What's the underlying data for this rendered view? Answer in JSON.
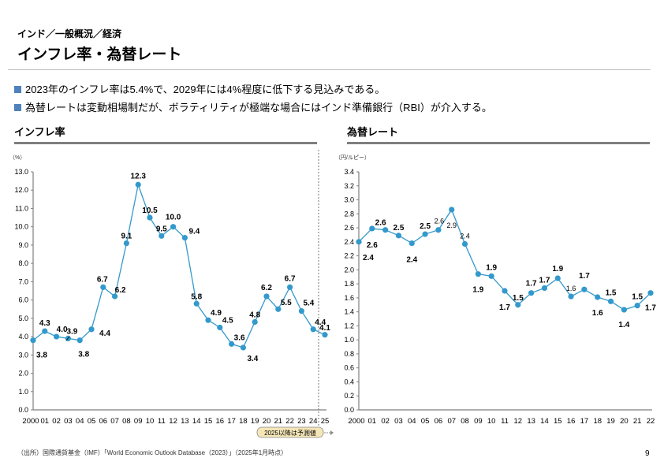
{
  "header": {
    "breadcrumb": "インド／一般概況／経済",
    "title": "インフレ率・為替レート"
  },
  "bullets": [
    "2023年のインフレ率は5.4%で、2029年には4%程度に低下する見込みである。",
    "為替レートは変動相場制だが、ボラティリティが極端な場合にはインド準備銀行（RBI）が介入する。"
  ],
  "colors": {
    "series": "#3399cc",
    "bullet": "#4f81bd"
  },
  "chart_data": [
    {
      "type": "line",
      "title": "インフレ率",
      "ylabel": "（%）",
      "ylim": [
        0,
        13
      ],
      "yticks": [
        "0.0",
        "1.0",
        "2.0",
        "3.0",
        "4.0",
        "5.0",
        "6.0",
        "7.0",
        "8.0",
        "9.0",
        "10.0",
        "11.0",
        "12.0",
        "13.0"
      ],
      "categories": [
        "2000",
        "01",
        "02",
        "03",
        "04",
        "05",
        "06",
        "07",
        "08",
        "09",
        "10",
        "11",
        "12",
        "13",
        "14",
        "15",
        "16",
        "17",
        "18",
        "19",
        "20",
        "21",
        "22",
        "23",
        "24",
        "25"
      ],
      "values": [
        3.8,
        4.3,
        4.0,
        3.9,
        3.8,
        4.4,
        6.7,
        6.2,
        9.1,
        12.3,
        10.5,
        9.5,
        10.0,
        9.4,
        5.8,
        4.9,
        4.5,
        3.6,
        3.4,
        4.8,
        6.2,
        5.5,
        6.7,
        5.4,
        4.4,
        4.1
      ],
      "labels": [
        "3.8",
        "4.3",
        "4.0",
        "3.9",
        "3.8",
        "4.4",
        "6.7",
        "6.2",
        "9.1",
        "12.3",
        "10.5",
        "9.5",
        "10.0",
        "9.4",
        "5.8",
        "4.9",
        "4.5",
        "3.6",
        "3.4",
        "4.8",
        "6.2",
        "5.5",
        "6.7",
        "5.4",
        "4.4",
        "4.1"
      ],
      "annotation": "2025以降は予測値",
      "forecast_from": "25"
    },
    {
      "type": "line",
      "title": "為替レート",
      "ylabel": "（円/ルピー）",
      "ylim": [
        0,
        3.4
      ],
      "yticks": [
        "0.0",
        "0.2",
        "0.4",
        "0.6",
        "0.8",
        "1.0",
        "1.2",
        "1.4",
        "1.6",
        "1.8",
        "2.0",
        "2.2",
        "2.4",
        "2.6",
        "2.8",
        "3.0",
        "3.2",
        "3.4"
      ],
      "categories": [
        "2000",
        "01",
        "02",
        "03",
        "04",
        "05",
        "06",
        "07",
        "08",
        "09",
        "10",
        "11",
        "12",
        "13",
        "14",
        "15",
        "16",
        "17",
        "18",
        "19",
        "20",
        "21",
        "22"
      ],
      "values": [
        2.4,
        2.59,
        2.57,
        2.49,
        2.38,
        2.51,
        2.57,
        2.86,
        2.37,
        1.94,
        1.91,
        1.7,
        1.5,
        1.67,
        1.74,
        1.88,
        1.62,
        1.72,
        1.61,
        1.55,
        1.43,
        1.49,
        1.67
      ],
      "labels": [
        "2.4",
        "2.6",
        "2.6",
        "2.5",
        "2.4",
        "2.5",
        "2.6",
        "2.9",
        "2.4",
        "1.9",
        "1.9",
        "1.7",
        "1.5",
        "1.7",
        "1.7",
        "1.9",
        "1.6",
        "1.7",
        "1.6",
        "1.5",
        "1.4",
        "1.5",
        "1.7"
      ]
    }
  ],
  "footer": {
    "source": "（出所）国際通貨基金（IMF）「World Economic Outlook Database（2023）」（2025年1月時点）",
    "page": "9"
  }
}
